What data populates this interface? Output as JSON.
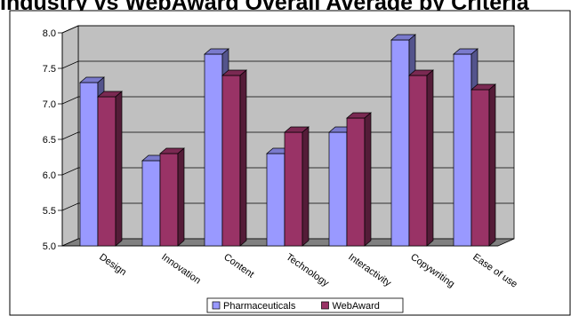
{
  "title": "Industry vs WebAward Overall Average by Criteria",
  "chart_data": {
    "type": "bar",
    "title": "Industry vs WebAward Overall Average by Criteria",
    "categories": [
      "Design",
      "Innovation",
      "Content",
      "Technology",
      "Interactivity",
      "Copywriting",
      "Ease of use"
    ],
    "series": [
      {
        "name": "Pharmaceuticals",
        "values": [
          7.3,
          6.2,
          7.7,
          6.3,
          6.6,
          7.9,
          7.7
        ],
        "color": "#9999ff"
      },
      {
        "name": "WebAward",
        "values": [
          7.1,
          6.3,
          7.4,
          6.6,
          6.8,
          7.4,
          7.2
        ],
        "color": "#993366"
      }
    ],
    "ylim": [
      5.0,
      8.0
    ],
    "yticks": [
      "5.0",
      "5.5",
      "6.0",
      "6.5",
      "7.0",
      "7.5",
      "8.0"
    ],
    "xlabel": "",
    "ylabel": "",
    "grid": true,
    "legend": "bottom",
    "style": "3d-clustered-column",
    "wall_color": "#c0c0c0",
    "floor_color": "#808080"
  }
}
